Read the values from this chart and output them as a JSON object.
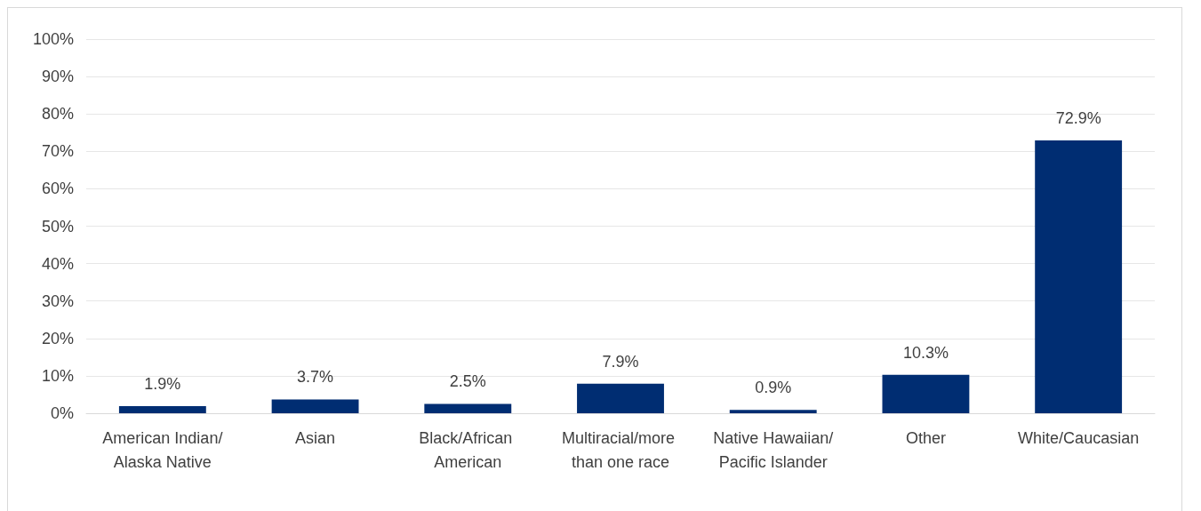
{
  "chart_data": {
    "type": "bar",
    "categories": [
      "American Indian/Alaska Native",
      "Asian",
      "Black/African American",
      "Multiracial/more than one race",
      "Native Hawaiian/Pacific Islander",
      "Other",
      "White/Caucasian"
    ],
    "values": [
      1.9,
      3.7,
      2.5,
      7.9,
      0.9,
      10.3,
      72.9
    ],
    "value_labels": [
      "1.9%",
      "3.7%",
      "2.5%",
      "7.9%",
      "0.9%",
      "10.3%",
      "72.9%"
    ],
    "color": "#002d72",
    "ylim": [
      0,
      100
    ],
    "yticks": [
      {
        "value": 0,
        "label": "0%"
      },
      {
        "value": 10,
        "label": "10%"
      },
      {
        "value": 20,
        "label": "20%"
      },
      {
        "value": 30,
        "label": "30%"
      },
      {
        "value": 40,
        "label": "40%"
      },
      {
        "value": 50,
        "label": "50%"
      },
      {
        "value": 60,
        "label": "60%"
      },
      {
        "value": 70,
        "label": "70%"
      },
      {
        "value": 80,
        "label": "80%"
      },
      {
        "value": 90,
        "label": "90%"
      },
      {
        "value": 100,
        "label": "100%"
      }
    ],
    "grid": "y"
  }
}
